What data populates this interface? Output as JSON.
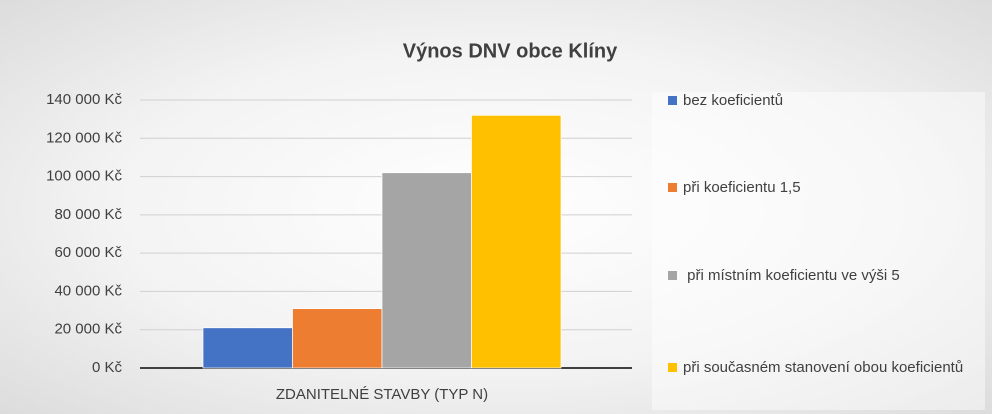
{
  "chart_data": {
    "type": "bar",
    "title": "Výnos DNV obce Klíny",
    "categories": [
      "ZDANITELNÉ STAVBY (TYP N)"
    ],
    "series": [
      {
        "name": "bez koeficientů",
        "color": "#4472c4",
        "values": [
          21000
        ]
      },
      {
        "name": "při koeficientu 1,5",
        "color": "#ed7d31",
        "values": [
          31000
        ]
      },
      {
        "name": " při místním koeficientu ve výši 5",
        "color": "#a5a5a5",
        "values": [
          102000
        ]
      },
      {
        "name": "při současném stanovení obou koeficientů",
        "color": "#ffc000",
        "values": [
          132000
        ]
      }
    ],
    "ylim": [
      0,
      140000
    ],
    "yticks": [
      {
        "value": 0,
        "label": "0 Kč"
      },
      {
        "value": 20000,
        "label": "20 000 Kč"
      },
      {
        "value": 40000,
        "label": "40 000 Kč"
      },
      {
        "value": 60000,
        "label": "60 000 Kč"
      },
      {
        "value": 80000,
        "label": "80 000 Kč"
      },
      {
        "value": 100000,
        "label": "100 000 Kč"
      },
      {
        "value": 120000,
        "label": "120 000 Kč"
      },
      {
        "value": 140000,
        "label": "140 000 Kč"
      }
    ],
    "grid": true,
    "legend": "right"
  }
}
